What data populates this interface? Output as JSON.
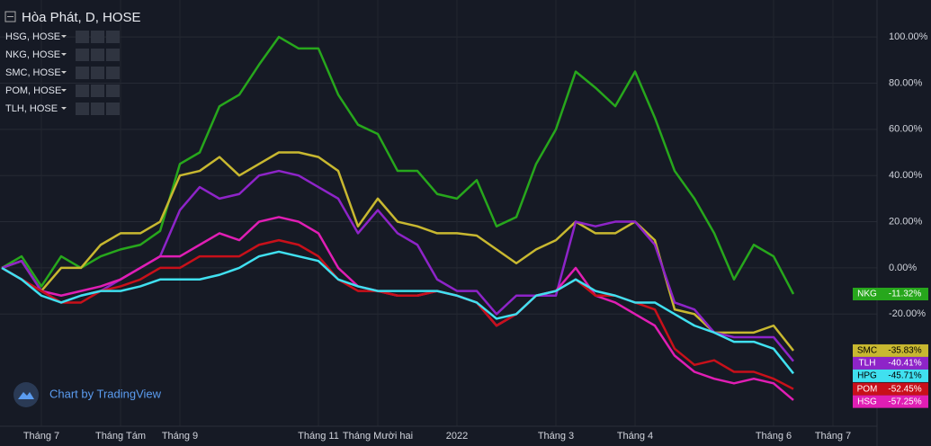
{
  "chart_data": {
    "type": "line",
    "title": "Hòa Phát, D, HOSE",
    "legend": [
      "HSG, HOSE",
      "NKG, HOSE",
      "SMC, HOSE",
      "POM, HOSE",
      "TLH, HOSE"
    ],
    "watermark": "Chart by TradingView",
    "categories": [
      null,
      null,
      "Tháng 7",
      null,
      null,
      null,
      "Tháng Tám",
      null,
      null,
      "Tháng 9",
      null,
      null,
      null,
      null,
      null,
      null,
      "Tháng 11",
      null,
      null,
      "Tháng Mười hai",
      null,
      null,
      null,
      "2022",
      null,
      null,
      null,
      null,
      "Tháng 3",
      null,
      null,
      null,
      "Tháng 4",
      null,
      null,
      null,
      null,
      null,
      null,
      "Tháng 6",
      null,
      null,
      "Tháng 7",
      null
    ],
    "ylim": [
      -67,
      116
    ],
    "yticks": [
      {
        "value": -20,
        "label": "-20.00%"
      },
      {
        "value": 0,
        "label": "0.00%"
      },
      {
        "value": 20,
        "label": "20.00%"
      },
      {
        "value": 40,
        "label": "40.00%"
      },
      {
        "value": 60,
        "label": "60.00%"
      },
      {
        "value": 80,
        "label": "80.00%"
      },
      {
        "value": 100,
        "label": "100.00%"
      }
    ],
    "grid": true,
    "series": [
      {
        "name": "NKG",
        "color": "#27a71c",
        "values": [
          0,
          5,
          -8,
          5,
          0,
          5,
          8,
          10,
          16,
          45,
          50,
          70,
          75,
          88,
          100,
          95,
          95,
          75,
          62,
          58,
          42,
          42,
          32,
          30,
          38,
          18,
          22,
          45,
          60,
          85,
          78,
          70,
          85,
          65,
          42,
          30,
          15,
          -5,
          10,
          5,
          -11.32,
          null,
          null,
          null
        ],
        "value_labels": [
          null,
          null,
          null,
          null,
          null,
          null,
          null,
          null,
          null,
          null,
          null,
          null,
          null,
          null,
          null,
          null,
          null,
          null,
          null,
          null,
          null,
          null,
          null,
          null,
          null,
          null,
          null,
          null,
          null,
          null,
          null,
          null,
          null,
          null,
          null,
          null,
          null,
          null,
          null,
          null,
          "-11.32%",
          null,
          null,
          null
        ]
      },
      {
        "name": "SMC",
        "color": "#c8b830",
        "values": [
          0,
          3,
          -10,
          0,
          0,
          10,
          15,
          15,
          20,
          40,
          42,
          48,
          40,
          45,
          50,
          50,
          48,
          42,
          18,
          30,
          20,
          18,
          15,
          15,
          14,
          8,
          2,
          8,
          12,
          20,
          15,
          15,
          20,
          12,
          -18,
          -20,
          -28,
          -28,
          -28,
          -25,
          -35.83,
          null,
          null,
          null
        ],
        "value_labels": [
          null,
          null,
          null,
          null,
          null,
          null,
          null,
          null,
          null,
          null,
          null,
          null,
          null,
          null,
          null,
          null,
          null,
          null,
          null,
          null,
          null,
          null,
          null,
          null,
          null,
          null,
          null,
          null,
          null,
          null,
          null,
          null,
          null,
          null,
          null,
          null,
          null,
          null,
          null,
          null,
          "-35.83%",
          null,
          null,
          null
        ]
      },
      {
        "name": "TLH",
        "color": "#8e24c8",
        "values": [
          0,
          3,
          -10,
          -15,
          -12,
          -10,
          -5,
          0,
          5,
          25,
          35,
          30,
          32,
          40,
          42,
          40,
          35,
          30,
          15,
          25,
          15,
          10,
          -5,
          -10,
          -10,
          -20,
          -12,
          -12,
          -12,
          20,
          18,
          20,
          20,
          10,
          -15,
          -18,
          -28,
          -30,
          -30,
          -30,
          -40.41,
          null,
          null,
          null
        ],
        "value_labels": [
          null,
          null,
          null,
          null,
          null,
          null,
          null,
          null,
          null,
          null,
          null,
          null,
          null,
          null,
          null,
          null,
          null,
          null,
          null,
          null,
          null,
          null,
          null,
          null,
          null,
          null,
          null,
          null,
          null,
          null,
          null,
          null,
          null,
          null,
          null,
          null,
          null,
          null,
          null,
          null,
          "-40.41%",
          null,
          null,
          null
        ]
      },
      {
        "name": "HSG",
        "color": "#e01eb4",
        "values": [
          0,
          -5,
          -10,
          -12,
          -10,
          -8,
          -5,
          0,
          5,
          5,
          10,
          15,
          12,
          20,
          22,
          20,
          15,
          0,
          -8,
          -10,
          -12,
          -12,
          -10,
          -12,
          -15,
          -25,
          -20,
          -12,
          -10,
          0,
          -12,
          -15,
          -20,
          -25,
          -38,
          -45,
          -48,
          -50,
          -48,
          -50,
          -57.25,
          null,
          null,
          null
        ],
        "value_labels": [
          null,
          null,
          null,
          null,
          null,
          null,
          null,
          null,
          null,
          null,
          null,
          null,
          null,
          null,
          null,
          null,
          null,
          null,
          null,
          null,
          null,
          null,
          null,
          null,
          null,
          null,
          null,
          null,
          null,
          null,
          null,
          null,
          null,
          null,
          null,
          null,
          null,
          null,
          null,
          null,
          "-57.25%",
          null,
          null,
          null
        ]
      },
      {
        "name": "POM",
        "color": "#c8101a",
        "values": [
          0,
          -5,
          -10,
          -15,
          -15,
          -10,
          -8,
          -5,
          0,
          0,
          5,
          5,
          5,
          10,
          12,
          10,
          5,
          -5,
          -10,
          -10,
          -12,
          -12,
          -10,
          -12,
          -15,
          -25,
          -20,
          -12,
          -10,
          -5,
          -12,
          -12,
          -15,
          -18,
          -35,
          -42,
          -40,
          -45,
          -45,
          -48,
          -52.45,
          null,
          null,
          null
        ],
        "value_labels": [
          null,
          null,
          null,
          null,
          null,
          null,
          null,
          null,
          null,
          null,
          null,
          null,
          null,
          null,
          null,
          null,
          null,
          null,
          null,
          null,
          null,
          null,
          null,
          null,
          null,
          null,
          null,
          null,
          null,
          null,
          null,
          null,
          null,
          null,
          null,
          null,
          null,
          null,
          null,
          null,
          "-52.45%",
          null,
          null,
          null
        ]
      },
      {
        "name": "HPG",
        "color": "#40e0f0",
        "values": [
          0,
          -5,
          -12,
          -15,
          -12,
          -10,
          -10,
          -8,
          -5,
          -5,
          -5,
          -3,
          0,
          5,
          7,
          5,
          3,
          -5,
          -8,
          -10,
          -10,
          -10,
          -10,
          -12,
          -15,
          -22,
          -20,
          -12,
          -10,
          -5,
          -10,
          -12,
          -15,
          -15,
          -20,
          -25,
          -28,
          -32,
          -32,
          -35,
          -45.71,
          null,
          null,
          null
        ],
        "value_labels": [
          null,
          null,
          null,
          null,
          null,
          null,
          null,
          null,
          null,
          null,
          null,
          null,
          null,
          null,
          null,
          null,
          null,
          null,
          null,
          null,
          null,
          null,
          null,
          null,
          null,
          null,
          null,
          null,
          null,
          null,
          null,
          null,
          null,
          null,
          null,
          null,
          null,
          null,
          null,
          null,
          "-45.71%",
          null,
          null,
          null
        ]
      }
    ]
  }
}
